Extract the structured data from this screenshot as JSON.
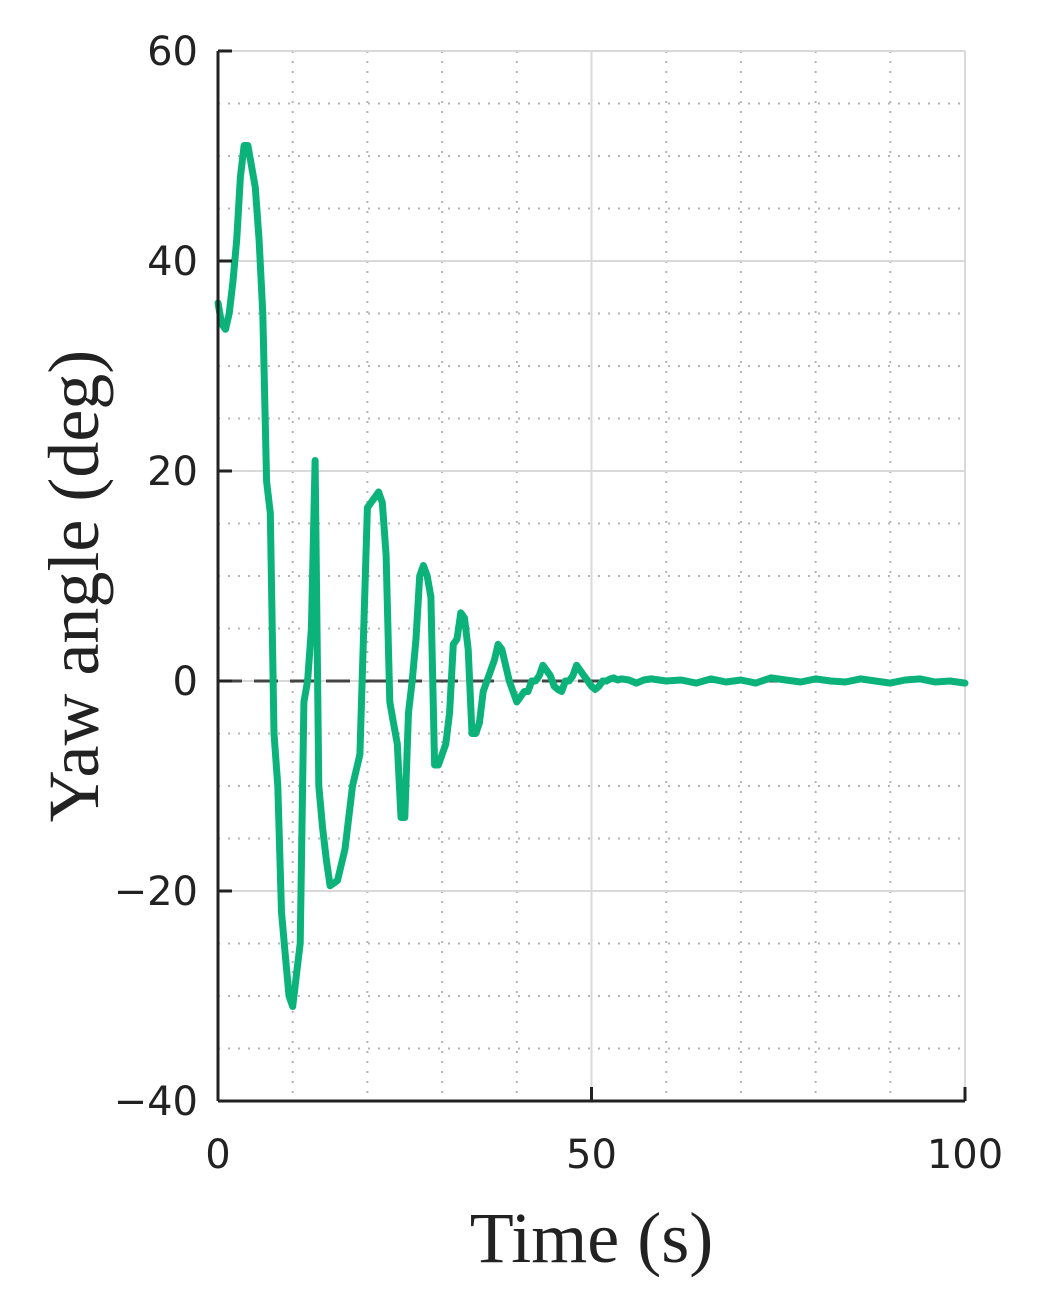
{
  "chart_data": {
    "type": "line",
    "title": "",
    "xlabel": "Time (s)",
    "ylabel": "Yaw angle (deg)",
    "xlim": [
      0,
      100
    ],
    "ylim": [
      -40,
      60
    ],
    "xticks": [
      0,
      50,
      100
    ],
    "xtick_labels": [
      "0",
      "50",
      "100"
    ],
    "yticks": [
      -40,
      -20,
      0,
      20,
      40,
      60
    ],
    "ytick_labels": [
      "−40",
      "−20",
      "0",
      "20",
      "40",
      "60"
    ],
    "grid": {
      "major": true,
      "minor": true,
      "minor_style": "dotted"
    },
    "reference_line": {
      "y": 0,
      "style": "dashed",
      "color": "#444444"
    },
    "series": [
      {
        "color": "#0bb37a",
        "x": [
          0,
          0.5,
          1,
          1.5,
          2,
          2.5,
          3,
          3.5,
          4,
          4.5,
          5,
          5.5,
          6,
          6.5,
          7,
          7.5,
          8,
          8.5,
          9,
          9.5,
          10,
          10.5,
          11,
          11.5,
          12,
          12.5,
          13,
          13.5,
          14,
          14.5,
          15,
          16,
          17,
          18,
          19,
          20,
          20.5,
          21,
          21.5,
          22,
          22.5,
          23,
          23.5,
          24,
          24.5,
          25,
          25.5,
          26,
          26.5,
          27,
          27.5,
          28,
          28.5,
          29,
          29.5,
          30,
          30.5,
          31,
          31.5,
          32,
          32.5,
          33,
          33.5,
          34,
          34.5,
          35,
          35.5,
          36,
          36.5,
          37,
          37.5,
          38,
          38.5,
          39,
          40,
          41,
          41.5,
          42,
          42.5,
          43,
          43.5,
          44,
          44.5,
          45,
          45.5,
          46,
          46.5,
          47,
          47.5,
          48,
          48.5,
          49,
          49.5,
          50,
          50.5,
          51,
          51.5,
          52,
          52.5,
          53,
          53.5,
          54,
          55,
          56,
          57,
          58,
          60,
          62,
          64,
          66,
          68,
          70,
          72,
          74,
          76,
          78,
          80,
          82,
          84,
          86,
          88,
          90,
          92,
          94,
          96,
          98,
          100
        ],
        "y": [
          36,
          34,
          33.5,
          35,
          38,
          42,
          48,
          51,
          51,
          49,
          47,
          42,
          35,
          19,
          16,
          -5,
          -10,
          -22,
          -26,
          -30,
          -31,
          -28,
          -25,
          -2,
          0,
          5,
          21,
          -10,
          -14,
          -17,
          -19.5,
          -19,
          -16,
          -10,
          -7,
          16.5,
          17,
          17.5,
          18,
          17,
          12,
          -2,
          -4,
          -6,
          -13,
          -13,
          -3,
          0,
          4,
          10,
          11,
          10,
          8,
          -8,
          -8,
          -7,
          -6,
          -3,
          3.5,
          4,
          6.5,
          6,
          3,
          -5,
          -5,
          -4,
          -1,
          0,
          1,
          2,
          3.5,
          3,
          1.5,
          0,
          -2,
          -1,
          -1,
          0,
          0,
          0.5,
          1.5,
          1,
          0.5,
          -0.5,
          -0.8,
          -1,
          0,
          0,
          0.5,
          1.5,
          1,
          0.5,
          0,
          -0.5,
          -0.8,
          -0.5,
          0,
          0,
          0.2,
          0.3,
          0.1,
          0.2,
          0.1,
          -0.2,
          0.1,
          0.2,
          0,
          0.1,
          -0.2,
          0.2,
          -0.1,
          0.1,
          -0.2,
          0.3,
          0.1,
          -0.1,
          0.2,
          0,
          -0.1,
          0.2,
          0,
          -0.2,
          0.1,
          0.2,
          -0.1,
          0,
          -0.2
        ]
      }
    ]
  }
}
